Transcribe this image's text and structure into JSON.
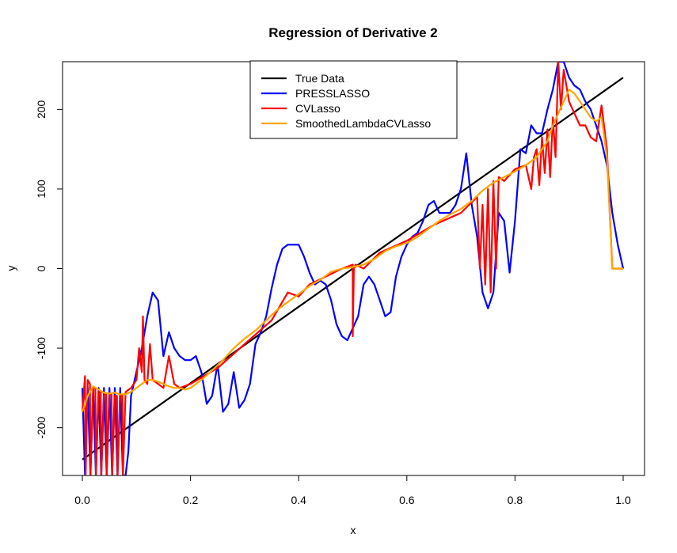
{
  "chart_data": {
    "type": "line",
    "title": "Regression of Derivative  2",
    "xlabel": "x",
    "ylabel": "y",
    "xlim": [
      0,
      1
    ],
    "ylim": [
      -260,
      260
    ],
    "xticks": [
      0.0,
      0.2,
      0.4,
      0.6,
      0.8,
      1.0
    ],
    "xtick_labels": [
      "0.0",
      "0.2",
      "0.4",
      "0.6",
      "0.8",
      "1.0"
    ],
    "yticks": [
      -200,
      -100,
      0,
      100,
      200
    ],
    "ytick_labels": [
      "-200",
      "-100",
      "0",
      "100",
      "200"
    ],
    "grid": false,
    "legend_position": "top-center",
    "series": [
      {
        "name": "True Data",
        "color": "#000000",
        "x": [
          0.0,
          1.0
        ],
        "y": [
          -240,
          240
        ]
      },
      {
        "name": "PRESSLASSO",
        "color": "#0000ff",
        "x": [
          0.0,
          0.005,
          0.01,
          0.015,
          0.02,
          0.025,
          0.03,
          0.035,
          0.04,
          0.045,
          0.05,
          0.055,
          0.06,
          0.065,
          0.07,
          0.075,
          0.08,
          0.085,
          0.09,
          0.1,
          0.11,
          0.12,
          0.13,
          0.14,
          0.15,
          0.16,
          0.17,
          0.18,
          0.19,
          0.2,
          0.21,
          0.22,
          0.23,
          0.24,
          0.25,
          0.26,
          0.27,
          0.28,
          0.29,
          0.3,
          0.31,
          0.32,
          0.33,
          0.34,
          0.35,
          0.36,
          0.37,
          0.38,
          0.39,
          0.4,
          0.41,
          0.42,
          0.43,
          0.44,
          0.45,
          0.46,
          0.47,
          0.48,
          0.49,
          0.5,
          0.51,
          0.52,
          0.53,
          0.54,
          0.55,
          0.56,
          0.57,
          0.58,
          0.59,
          0.6,
          0.61,
          0.62,
          0.63,
          0.64,
          0.65,
          0.66,
          0.67,
          0.68,
          0.69,
          0.7,
          0.71,
          0.72,
          0.73,
          0.74,
          0.75,
          0.76,
          0.77,
          0.78,
          0.79,
          0.8,
          0.81,
          0.82,
          0.83,
          0.84,
          0.85,
          0.86,
          0.87,
          0.88,
          0.89,
          0.9,
          0.91,
          0.92,
          0.93,
          0.94,
          0.95,
          0.96,
          0.97,
          0.98,
          0.99,
          1.0
        ],
        "y": [
          -150,
          -260,
          -150,
          -260,
          -150,
          -260,
          -150,
          -260,
          -150,
          -260,
          -150,
          -260,
          -150,
          -260,
          -150,
          -260,
          -260,
          -230,
          -160,
          -130,
          -100,
          -60,
          -30,
          -40,
          -110,
          -80,
          -100,
          -110,
          -115,
          -115,
          -110,
          -130,
          -170,
          -160,
          -120,
          -180,
          -170,
          -130,
          -175,
          -165,
          -145,
          -95,
          -80,
          -60,
          -25,
          5,
          25,
          30,
          30,
          30,
          15,
          -5,
          -20,
          -15,
          -20,
          -40,
          -70,
          -85,
          -90,
          -75,
          -60,
          -20,
          -10,
          -20,
          -40,
          -60,
          -55,
          -10,
          15,
          30,
          40,
          45,
          60,
          80,
          85,
          70,
          70,
          70,
          80,
          100,
          145,
          80,
          40,
          -30,
          -50,
          -30,
          70,
          60,
          -5,
          60,
          150,
          145,
          180,
          170,
          170,
          200,
          225,
          260,
          260,
          240,
          230,
          225,
          210,
          200,
          180,
          160,
          130,
          70,
          30,
          0
        ]
      },
      {
        "name": "CVLasso",
        "color": "#ff0000",
        "x": [
          0.0,
          0.005,
          0.006,
          0.01,
          0.014,
          0.015,
          0.02,
          0.024,
          0.025,
          0.03,
          0.034,
          0.035,
          0.04,
          0.044,
          0.045,
          0.05,
          0.054,
          0.055,
          0.06,
          0.064,
          0.065,
          0.07,
          0.074,
          0.075,
          0.08,
          0.09,
          0.1,
          0.105,
          0.11,
          0.112,
          0.115,
          0.12,
          0.125,
          0.13,
          0.14,
          0.15,
          0.16,
          0.17,
          0.18,
          0.2,
          0.25,
          0.3,
          0.35,
          0.38,
          0.4,
          0.42,
          0.45,
          0.48,
          0.5,
          0.5,
          0.502,
          0.505,
          0.52,
          0.55,
          0.6,
          0.65,
          0.7,
          0.73,
          0.735,
          0.74,
          0.745,
          0.75,
          0.755,
          0.76,
          0.765,
          0.77,
          0.78,
          0.8,
          0.82,
          0.83,
          0.835,
          0.84,
          0.845,
          0.85,
          0.855,
          0.86,
          0.865,
          0.87,
          0.875,
          0.88,
          0.885,
          0.89,
          0.9,
          0.91,
          0.92,
          0.93,
          0.94,
          0.95,
          0.96,
          0.97,
          0.98,
          1.0
        ],
        "y": [
          -180,
          -135,
          -260,
          -140,
          -145,
          -260,
          -150,
          -150,
          -260,
          -155,
          -155,
          -260,
          -158,
          -158,
          -260,
          -158,
          -158,
          -260,
          -160,
          -160,
          -260,
          -160,
          -158,
          -260,
          -155,
          -150,
          -140,
          -100,
          -130,
          -60,
          -140,
          -145,
          -95,
          -140,
          -145,
          -150,
          -110,
          -145,
          -150,
          -145,
          -125,
          -95,
          -65,
          -30,
          -35,
          -20,
          -10,
          0,
          5,
          -85,
          0,
          5,
          0,
          20,
          35,
          55,
          70,
          90,
          0,
          80,
          -20,
          100,
          -30,
          110,
          0,
          115,
          110,
          125,
          130,
          100,
          140,
          150,
          105,
          165,
          120,
          175,
          115,
          190,
          140,
          260,
          200,
          250,
          210,
          195,
          180,
          180,
          165,
          160,
          205,
          150,
          0,
          0
        ]
      },
      {
        "name": "SmoothedLambdaCVLasso",
        "color": "#ffa500",
        "x": [
          0.0,
          0.01,
          0.02,
          0.03,
          0.04,
          0.05,
          0.06,
          0.07,
          0.08,
          0.09,
          0.1,
          0.11,
          0.12,
          0.13,
          0.14,
          0.15,
          0.16,
          0.17,
          0.18,
          0.19,
          0.2,
          0.22,
          0.24,
          0.26,
          0.28,
          0.3,
          0.32,
          0.34,
          0.36,
          0.38,
          0.4,
          0.42,
          0.44,
          0.46,
          0.48,
          0.5,
          0.52,
          0.54,
          0.56,
          0.58,
          0.6,
          0.62,
          0.64,
          0.66,
          0.68,
          0.7,
          0.72,
          0.74,
          0.76,
          0.78,
          0.8,
          0.82,
          0.84,
          0.85,
          0.86,
          0.87,
          0.88,
          0.89,
          0.9,
          0.91,
          0.92,
          0.93,
          0.94,
          0.95,
          0.96,
          0.97,
          0.975,
          0.98,
          1.0
        ],
        "y": [
          -180,
          -160,
          -148,
          -152,
          -156,
          -157,
          -156,
          -158,
          -158,
          -155,
          -150,
          -145,
          -140,
          -140,
          -142,
          -145,
          -148,
          -150,
          -150,
          -152,
          -150,
          -140,
          -128,
          -115,
          -100,
          -88,
          -78,
          -65,
          -52,
          -42,
          -32,
          -22,
          -14,
          -4,
          0,
          2,
          5,
          12,
          22,
          28,
          32,
          40,
          50,
          60,
          68,
          75,
          85,
          98,
          108,
          115,
          122,
          130,
          140,
          150,
          160,
          180,
          195,
          210,
          225,
          220,
          210,
          200,
          190,
          185,
          190,
          140,
          70,
          0,
          0
        ]
      }
    ]
  }
}
